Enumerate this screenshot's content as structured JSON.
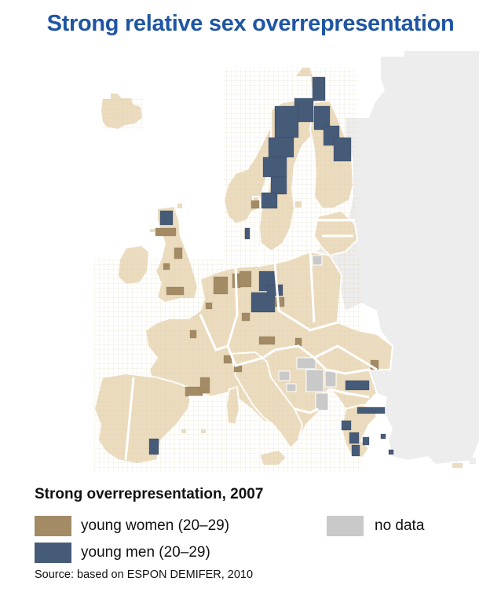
{
  "title": "Strong relative sex overrepresentation",
  "legend": {
    "title": "Strong overrepresentation, 2007",
    "items": [
      {
        "id": "women",
        "label": "young women (20–29)",
        "color": "#a38b66"
      },
      {
        "id": "men",
        "label": "young men (20–29)",
        "color": "#465b78"
      },
      {
        "id": "nodata",
        "label": "no data",
        "color": "#c9c9c9"
      }
    ]
  },
  "source": "Source: based on ESPON DEMIFER, 2010",
  "colors": {
    "region": "#ecdcbf",
    "outside": "#ededed",
    "cell_grid": "#dccaa8",
    "border": "#ffffff"
  }
}
